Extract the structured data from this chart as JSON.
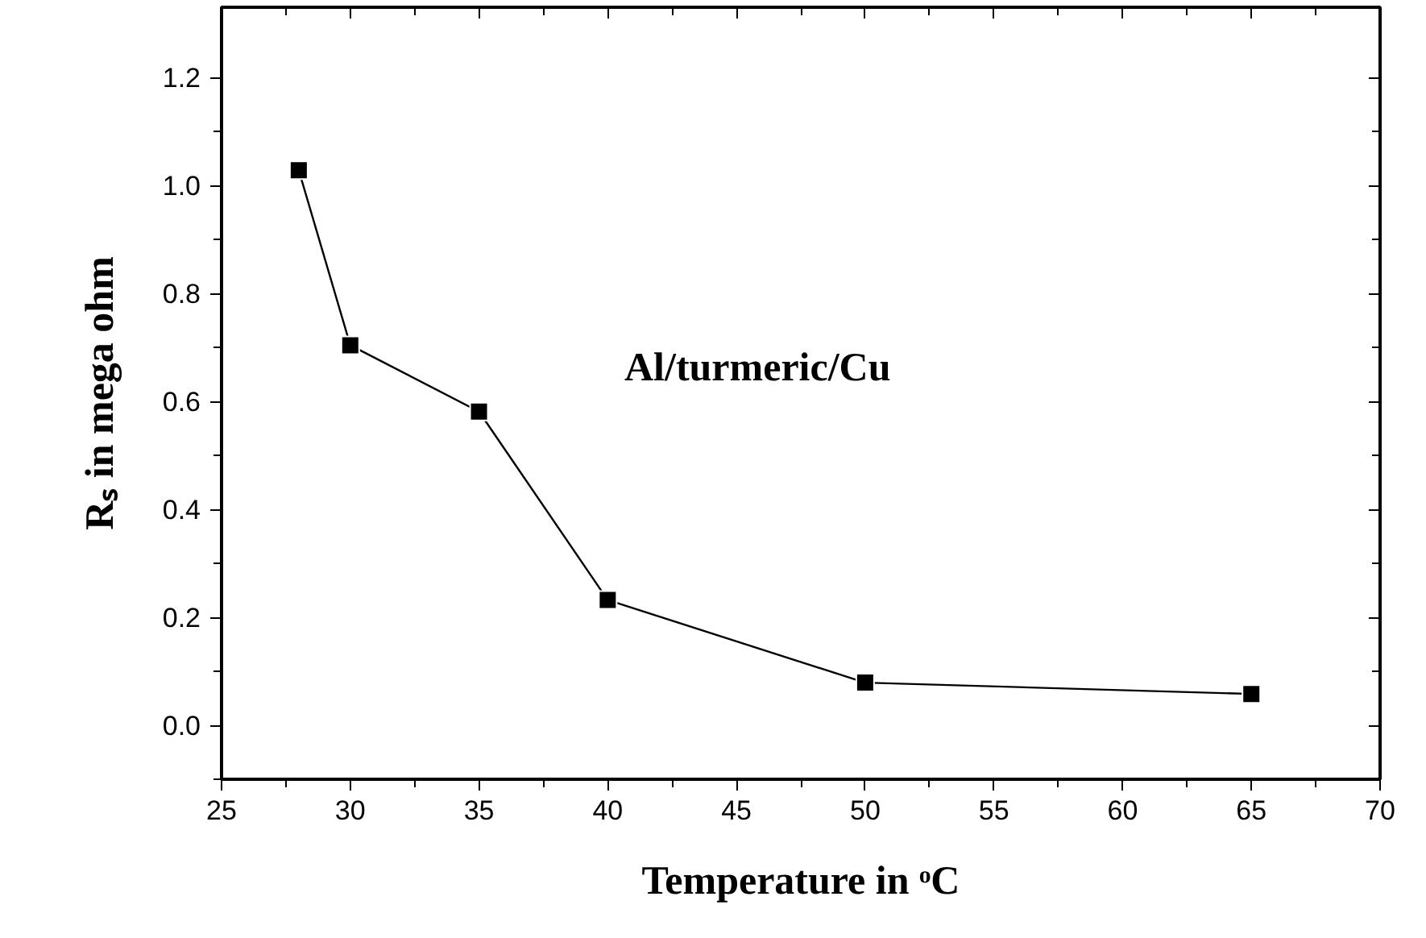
{
  "chart_data": {
    "type": "line",
    "xlabel": "Temperature in ᵒC",
    "ylabel": "Rₛ in mega ohm",
    "annotations": [
      "Al/turmeric/Cu"
    ],
    "x": [
      28,
      30,
      35,
      40,
      50,
      65
    ],
    "series": [
      {
        "color": "#000000",
        "values": [
          1.028,
          0.704,
          0.581,
          0.232,
          0.079,
          0.058
        ]
      }
    ],
    "marker": "square",
    "line_style": "solid",
    "grid": false,
    "xlim": [
      25,
      70
    ],
    "xticks": [
      25,
      30,
      35,
      40,
      45,
      50,
      55,
      60,
      65,
      70
    ],
    "ylim": [
      -0.1,
      1.33
    ],
    "yticks": [
      {
        "value": 0,
        "label": "0.0"
      },
      0.2,
      0.4,
      0.6,
      0.8,
      {
        "value": 1,
        "label": "1.0"
      },
      1.2
    ]
  }
}
